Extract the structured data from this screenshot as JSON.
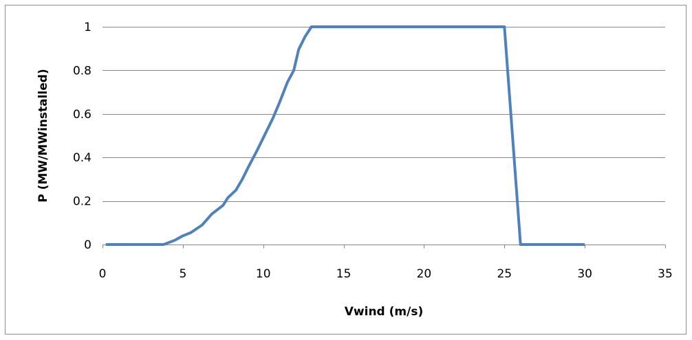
{
  "chart_data": {
    "type": "line",
    "title": "",
    "xlabel": "Vwind (m/s)",
    "ylabel": "P (MW/MWinstalled)",
    "xlim": [
      0,
      35
    ],
    "ylim": [
      0,
      1
    ],
    "x_ticks": [
      0,
      5,
      10,
      15,
      20,
      25,
      30,
      35
    ],
    "y_ticks": [
      0,
      0.2,
      0.4,
      0.6,
      0.8,
      1
    ],
    "x_tick_labels": [
      "0",
      "5",
      "10",
      "15",
      "20",
      "25",
      "30",
      "35"
    ],
    "y_tick_labels": [
      "0",
      "0.2",
      "0.4",
      "0.6",
      "0.8",
      "1"
    ],
    "grid": "horizontal",
    "legend": "none",
    "series": [
      {
        "color": "#4f81bd",
        "points": [
          [
            0.2,
            0
          ],
          [
            3.8,
            0
          ],
          [
            4.5,
            0.02
          ],
          [
            5,
            0.04
          ],
          [
            5.5,
            0.055
          ],
          [
            6.2,
            0.09
          ],
          [
            6.8,
            0.14
          ],
          [
            7.5,
            0.18
          ],
          [
            7.8,
            0.215
          ],
          [
            8.3,
            0.25
          ],
          [
            8.7,
            0.3
          ],
          [
            9.1,
            0.36
          ],
          [
            9.6,
            0.43
          ],
          [
            10,
            0.49
          ],
          [
            10.6,
            0.58
          ],
          [
            11,
            0.65
          ],
          [
            11.5,
            0.745
          ],
          [
            11.9,
            0.8
          ],
          [
            12.2,
            0.895
          ],
          [
            12.6,
            0.955
          ],
          [
            13,
            1
          ],
          [
            25,
            1
          ],
          [
            26,
            0
          ],
          [
            30,
            0
          ]
        ]
      }
    ]
  }
}
